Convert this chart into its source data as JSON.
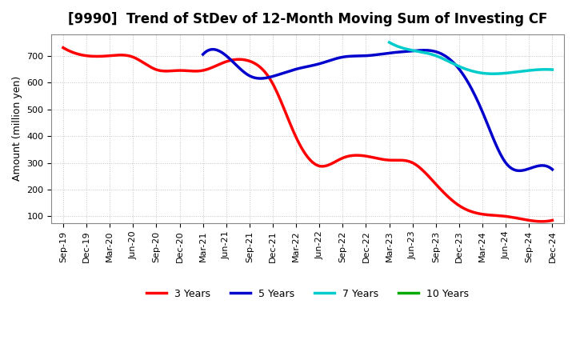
{
  "title": "[9990]  Trend of StDev of 12-Month Moving Sum of Investing CF",
  "ylabel": "Amount (million yen)",
  "ylim": [
    75,
    780
  ],
  "yticks": [
    100,
    200,
    300,
    400,
    500,
    600,
    700
  ],
  "background_color": "#ffffff",
  "grid_color": "#aaaaaa",
  "x_labels": [
    "Sep-19",
    "Dec-19",
    "Mar-20",
    "Jun-20",
    "Sep-20",
    "Dec-20",
    "Mar-21",
    "Jun-21",
    "Sep-21",
    "Dec-21",
    "Mar-22",
    "Jun-22",
    "Sep-22",
    "Dec-22",
    "Mar-23",
    "Jun-23",
    "Sep-23",
    "Dec-23",
    "Mar-24",
    "Jun-24",
    "Sep-24",
    "Dec-24"
  ],
  "series": {
    "3 Years": {
      "color": "#ff0000",
      "data_x": [
        0,
        1,
        2,
        3,
        4,
        5,
        6,
        7,
        8,
        9,
        10,
        11,
        12,
        13,
        14,
        15,
        16,
        17,
        18,
        19,
        20,
        21
      ],
      "data_y": [
        730,
        700,
        700,
        695,
        648,
        645,
        645,
        678,
        680,
        595,
        395,
        288,
        318,
        325,
        310,
        300,
        220,
        140,
        108,
        100,
        85,
        85
      ]
    },
    "5 Years": {
      "color": "#0000cc",
      "data_x": [
        6,
        7,
        8,
        9,
        10,
        11,
        12,
        13,
        14,
        15,
        16,
        17,
        18,
        19,
        20,
        21
      ],
      "data_y": [
        705,
        700,
        625,
        623,
        650,
        670,
        695,
        700,
        710,
        718,
        715,
        650,
        490,
        300,
        278,
        275
      ]
    },
    "7 Years": {
      "color": "#00cccc",
      "data_x": [
        14,
        15,
        16,
        17,
        18,
        19,
        20,
        21
      ],
      "data_y": [
        750,
        720,
        700,
        660,
        635,
        635,
        645,
        648
      ]
    },
    "10 Years": {
      "color": "#00aa00",
      "data_x": [],
      "data_y": []
    }
  }
}
